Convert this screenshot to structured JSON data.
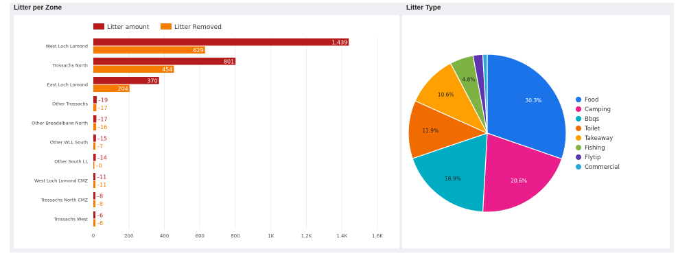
{
  "bar_panel": {
    "title": "Litter per Zone"
  },
  "pie_panel": {
    "title": "Litter Type"
  },
  "chart_data": [
    {
      "type": "bar",
      "orientation": "horizontal",
      "title": "Litter per Zone",
      "categories": [
        "West Loch Lomond",
        "Trossachs North",
        "East Loch Lomond",
        "Other Trossachs",
        "Other Breadalbane North",
        "Other WLL South",
        "Other South LL",
        "West Loch Lomond CMZ",
        "Trossachs North CMZ",
        "Trossachs West"
      ],
      "series": [
        {
          "name": "Litter amount",
          "color": "#b71c1c",
          "values": [
            1439,
            801,
            370,
            19,
            17,
            15,
            14,
            11,
            8,
            6
          ],
          "labels": [
            "1,439",
            "801",
            "370",
            "19",
            "17",
            "15",
            "14",
            "11",
            "8",
            "6"
          ]
        },
        {
          "name": "Litter Removed",
          "color": "#f57c00",
          "values": [
            629,
            454,
            204,
            17,
            16,
            7,
            0,
            11,
            8,
            6
          ],
          "labels": [
            "629",
            "454",
            "204",
            "17",
            "16",
            "7",
            "0",
            "11",
            "8",
            "6"
          ]
        }
      ],
      "xlim": [
        0,
        1600
      ],
      "xticks": [
        0,
        200,
        400,
        600,
        800,
        1000,
        1200,
        1400,
        1600
      ],
      "xtick_labels": [
        "0",
        "200",
        "400",
        "600",
        "800",
        "1K",
        "1.2K",
        "1.4K",
        "1.6K"
      ],
      "legend": "top-left",
      "grid": true
    },
    {
      "type": "pie",
      "title": "Litter Type",
      "slices": [
        {
          "name": "Food",
          "value": 30.3,
          "label": "30.3%",
          "color": "#1a73e8"
        },
        {
          "name": "Camping",
          "value": 20.6,
          "label": "20.6%",
          "color": "#e91e8c"
        },
        {
          "name": "Bbqs",
          "value": 18.9,
          "label": "18.9%",
          "color": "#00acc1"
        },
        {
          "name": "Toilet",
          "value": 11.9,
          "label": "11.9%",
          "color": "#f06c00"
        },
        {
          "name": "Takeaway",
          "value": 10.6,
          "label": "10.6%",
          "color": "#ffa000"
        },
        {
          "name": "Fishing",
          "value": 4.8,
          "label": "4.8%",
          "color": "#7cb342"
        },
        {
          "name": "Flytip",
          "value": 2.0,
          "label": "",
          "color": "#5e35b1"
        },
        {
          "name": "Commercial",
          "value": 0.9,
          "label": "",
          "color": "#29a8e0"
        }
      ],
      "legend": "right"
    }
  ]
}
